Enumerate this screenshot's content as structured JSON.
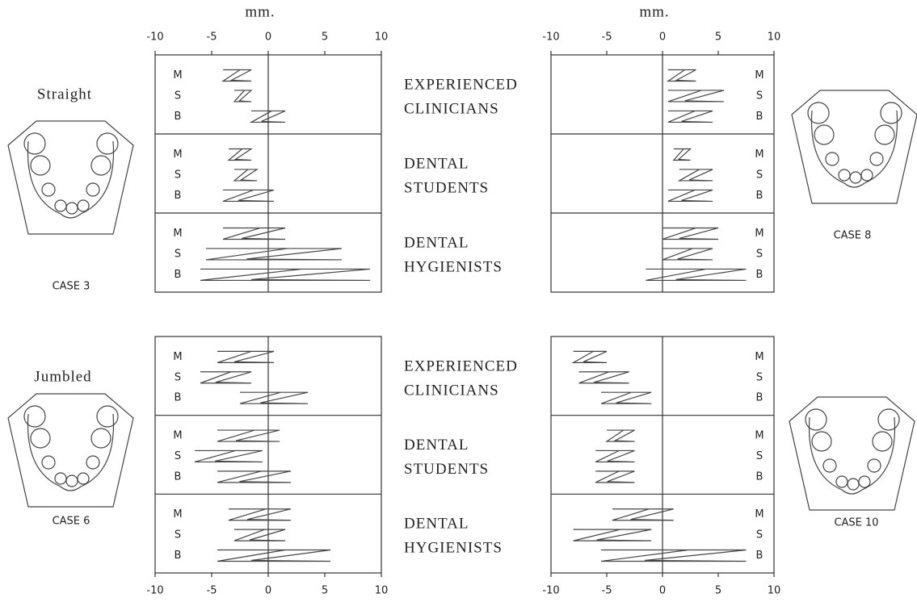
{
  "axis": {
    "unit": "mm.",
    "xlim": [
      -10,
      10
    ],
    "xticks": [
      -10,
      -5,
      0,
      5,
      10
    ]
  },
  "row_labels": [
    "M",
    "S",
    "B"
  ],
  "groups": [
    [
      "EXPERIENCED",
      "CLINICIANS"
    ],
    [
      "DENTAL",
      "STUDENTS"
    ],
    [
      "DENTAL",
      "HYGIENISTS"
    ]
  ],
  "panels": [
    {
      "arch": "Straight",
      "case": "CASE 3",
      "ranges": [
        [
          [
            -4,
            -1.5
          ],
          [
            -3,
            -1.5
          ],
          [
            -1.5,
            1.5
          ]
        ],
        [
          [
            -3.5,
            -1.5
          ],
          [
            -3,
            -1
          ],
          [
            -4,
            0.5
          ]
        ],
        [
          [
            -4,
            1.5
          ],
          [
            -5.5,
            6.5
          ],
          [
            -6,
            9
          ]
        ]
      ]
    },
    {
      "case": "CASE 8",
      "ranges": [
        [
          [
            0.5,
            3
          ],
          [
            0.5,
            5.5
          ],
          [
            0.5,
            4.5
          ]
        ],
        [
          [
            1,
            2.5
          ],
          [
            1.5,
            4.5
          ],
          [
            0.5,
            4.5
          ]
        ],
        [
          [
            0,
            5
          ],
          [
            0,
            4.5
          ],
          [
            -1.5,
            7.5
          ]
        ]
      ]
    },
    {
      "arch": "Jumbled",
      "case": "CASE 6",
      "ranges": [
        [
          [
            -4.5,
            0.5
          ],
          [
            -6,
            -1.5
          ],
          [
            -2.5,
            3.5
          ]
        ],
        [
          [
            -4.5,
            1
          ],
          [
            -6.5,
            -0.5
          ],
          [
            -4.5,
            2
          ]
        ],
        [
          [
            -3.5,
            2
          ],
          [
            -3,
            1.5
          ],
          [
            -4.5,
            5.5
          ]
        ]
      ]
    },
    {
      "case": "CASE 10",
      "ranges": [
        [
          [
            -8,
            -5
          ],
          [
            -7.5,
            -3
          ],
          [
            -5.5,
            -1
          ]
        ],
        [
          [
            -5,
            -2.5
          ],
          [
            -6,
            -2.5
          ],
          [
            -6,
            -2.5
          ]
        ],
        [
          [
            -4.5,
            1
          ],
          [
            -8,
            -1
          ],
          [
            -5.5,
            7.5
          ]
        ]
      ]
    }
  ]
}
